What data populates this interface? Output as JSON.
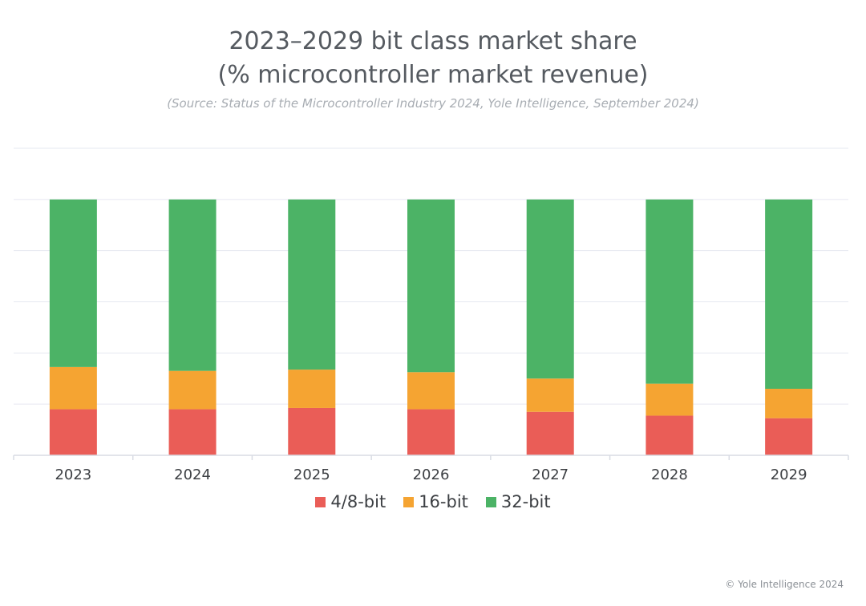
{
  "title_line1": "2023–2029 bit class market share",
  "title_line2": "(% microcontroller market revenue)",
  "source": "(Source: Status of the Microcontroller Industry 2024, Yole Intelligence, September 2024)",
  "footer": "© Yole Intelligence 2024",
  "colors": {
    "s48": "#ea5d57",
    "s16": "#f5a432",
    "s32": "#4cb366",
    "grid": "#e6e8f0",
    "axis": "#d9dce4"
  },
  "chart_data": {
    "type": "bar",
    "stacked": true,
    "categories": [
      "2023",
      "2024",
      "2025",
      "2026",
      "2027",
      "2028",
      "2029"
    ],
    "ylim": [
      0,
      120
    ],
    "grid": true,
    "legend_position": "bottom",
    "series": [
      {
        "name": "4/8-bit",
        "color": "#ea5d57",
        "values": [
          18,
          18,
          18.5,
          18,
          17,
          15.5,
          14.5
        ]
      },
      {
        "name": "16-bit",
        "color": "#f5a432",
        "values": [
          16.5,
          15,
          15,
          14.5,
          13,
          12.5,
          11.5
        ]
      },
      {
        "name": "32-bit",
        "color": "#4cb366",
        "values": [
          65.5,
          67,
          66.5,
          67.5,
          70,
          72,
          74
        ]
      }
    ]
  }
}
